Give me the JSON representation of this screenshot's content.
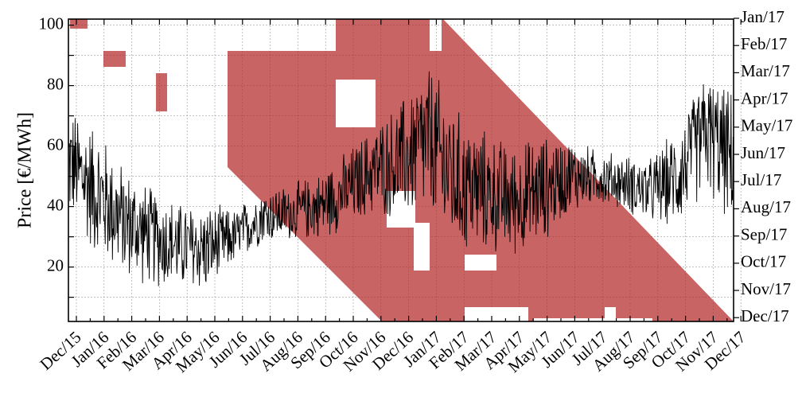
{
  "chart_data": {
    "type": "line",
    "title": "",
    "ylabel": "Price [€/MWh]",
    "xlabel": "",
    "ylim": [
      2,
      102
    ],
    "grid": true,
    "x_months": [
      "Dec/15",
      "Jan/16",
      "Feb/16",
      "Mar/16",
      "Apr/16",
      "May/16",
      "Jun/16",
      "Jul/16",
      "Aug/16",
      "Sep/16",
      "Oct/16",
      "Nov/16",
      "Dec/16",
      "Jan/17",
      "Feb/17",
      "Mar/17",
      "Apr/17",
      "May/17",
      "Jun/17",
      "Jul/17",
      "Aug/17",
      "Sep/17",
      "Oct/17",
      "Nov/17",
      "Dec/17"
    ],
    "y_ticks": [
      20,
      40,
      60,
      80,
      100
    ],
    "right_axis_months": [
      "Jan/17",
      "Feb/17",
      "Mar/17",
      "Apr/17",
      "May/17",
      "Jun/17",
      "Jul/17",
      "Aug/17",
      "Sep/17",
      "Oct/17",
      "Nov/17",
      "Dec/17"
    ],
    "price_series": {
      "color": "#000000",
      "monthly_mean": [
        55,
        45,
        35,
        30,
        27,
        26,
        30,
        37,
        38,
        40,
        45,
        52,
        55,
        62,
        48,
        45,
        42,
        45,
        50,
        50,
        48,
        45,
        50,
        65,
        55
      ],
      "monthly_spread": [
        20,
        24,
        20,
        18,
        16,
        16,
        10,
        10,
        10,
        12,
        14,
        16,
        22,
        28,
        26,
        22,
        20,
        20,
        14,
        10,
        10,
        12,
        18,
        22,
        24
      ]
    },
    "overlay": {
      "color": "#b22222",
      "opacity": 0.7
    }
  }
}
